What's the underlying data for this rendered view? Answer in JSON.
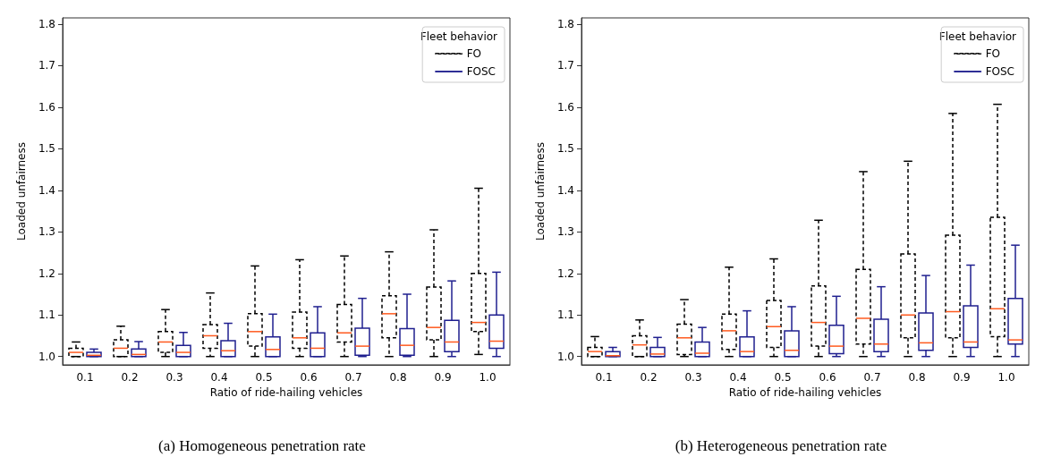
{
  "chart_data": [
    {
      "type": "box",
      "title": "(a) Homogeneous penetration rate",
      "xlabel": "Ratio of ride-hailing vehicles",
      "ylabel": "Loaded unfairness",
      "legend_title": "Fleet behavior",
      "legend": "top right",
      "grid": false,
      "categories": [
        "0.1",
        "0.2",
        "0.3",
        "0.4",
        "0.5",
        "0.6",
        "0.7",
        "0.8",
        "0.9",
        "1.0"
      ],
      "ylim": [
        0.98,
        1.815
      ],
      "yticks": [
        {
          "value": 1,
          "label": "1.0"
        },
        1.1,
        1.2,
        1.3,
        1.4,
        1.5,
        1.6,
        1.7,
        1.8
      ],
      "series": [
        {
          "name": "FO",
          "color": "#000000",
          "line_style": "dashed",
          "boxes": [
            {
              "low": 1.0,
              "q1": 1.0,
              "median": 1.01,
              "q3": 1.02,
              "high": 1.035
            },
            {
              "low": 1.0,
              "q1": 1.0,
              "median": 1.02,
              "q3": 1.04,
              "high": 1.073
            },
            {
              "low": 1.0,
              "q1": 1.01,
              "median": 1.035,
              "q3": 1.06,
              "high": 1.113
            },
            {
              "low": 1.0,
              "q1": 1.02,
              "median": 1.05,
              "q3": 1.077,
              "high": 1.153
            },
            {
              "low": 1.0,
              "q1": 1.025,
              "median": 1.06,
              "q3": 1.103,
              "high": 1.218
            },
            {
              "low": 1.0,
              "q1": 1.02,
              "median": 1.045,
              "q3": 1.107,
              "high": 1.233
            },
            {
              "low": 1.0,
              "q1": 1.035,
              "median": 1.057,
              "q3": 1.125,
              "high": 1.242
            },
            {
              "low": 1.0,
              "q1": 1.045,
              "median": 1.103,
              "q3": 1.146,
              "high": 1.252
            },
            {
              "low": 1.0,
              "q1": 1.04,
              "median": 1.07,
              "q3": 1.167,
              "high": 1.305
            },
            {
              "low": 1.005,
              "q1": 1.06,
              "median": 1.082,
              "q3": 1.2,
              "high": 1.405
            }
          ]
        },
        {
          "name": "FOSC",
          "color": "#1f1f8f",
          "line_style": "solid",
          "boxes": [
            {
              "low": 1.0,
              "q1": 1.0,
              "median": 1.003,
              "q3": 1.01,
              "high": 1.018
            },
            {
              "low": 1.0,
              "q1": 1.0,
              "median": 1.005,
              "q3": 1.018,
              "high": 1.036
            },
            {
              "low": 1.0,
              "q1": 1.0,
              "median": 1.01,
              "q3": 1.027,
              "high": 1.058
            },
            {
              "low": 1.0,
              "q1": 1.0,
              "median": 1.014,
              "q3": 1.038,
              "high": 1.08
            },
            {
              "low": 1.0,
              "q1": 1.0,
              "median": 1.017,
              "q3": 1.047,
              "high": 1.102
            },
            {
              "low": 1.0,
              "q1": 1.0,
              "median": 1.02,
              "q3": 1.057,
              "high": 1.12
            },
            {
              "low": 1.0,
              "q1": 1.003,
              "median": 1.025,
              "q3": 1.068,
              "high": 1.14
            },
            {
              "low": 1.0,
              "q1": 1.003,
              "median": 1.027,
              "q3": 1.067,
              "high": 1.15
            },
            {
              "low": 1.0,
              "q1": 1.012,
              "median": 1.035,
              "q3": 1.087,
              "high": 1.182
            },
            {
              "low": 1.0,
              "q1": 1.02,
              "median": 1.037,
              "q3": 1.1,
              "high": 1.203
            }
          ]
        }
      ]
    },
    {
      "type": "box",
      "title": "(b) Heterogeneous penetration rate",
      "xlabel": "Ratio of ride-hailing vehicles",
      "ylabel": "Loaded unfairness",
      "legend_title": "Fleet behavior",
      "legend": "top right",
      "grid": false,
      "categories": [
        "0.1",
        "0.2",
        "0.3",
        "0.4",
        "0.5",
        "0.6",
        "0.7",
        "0.8",
        "0.9",
        "1.0"
      ],
      "ylim": [
        0.98,
        1.815
      ],
      "yticks": [
        {
          "value": 1,
          "label": "1.0"
        },
        1.1,
        1.2,
        1.3,
        1.4,
        1.5,
        1.6,
        1.7,
        1.8
      ],
      "series": [
        {
          "name": "FO",
          "color": "#000000",
          "line_style": "dashed",
          "boxes": [
            {
              "low": 1.0,
              "q1": 1.0,
              "median": 1.012,
              "q3": 1.022,
              "high": 1.048
            },
            {
              "low": 1.0,
              "q1": 1.0,
              "median": 1.028,
              "q3": 1.05,
              "high": 1.088
            },
            {
              "low": 1.0,
              "q1": 1.005,
              "median": 1.045,
              "q3": 1.078,
              "high": 1.137
            },
            {
              "low": 1.0,
              "q1": 1.017,
              "median": 1.062,
              "q3": 1.102,
              "high": 1.215
            },
            {
              "low": 1.0,
              "q1": 1.022,
              "median": 1.072,
              "q3": 1.135,
              "high": 1.235
            },
            {
              "low": 1.0,
              "q1": 1.025,
              "median": 1.082,
              "q3": 1.17,
              "high": 1.328
            },
            {
              "low": 1.0,
              "q1": 1.03,
              "median": 1.092,
              "q3": 1.21,
              "high": 1.445
            },
            {
              "low": 1.0,
              "q1": 1.045,
              "median": 1.1,
              "q3": 1.247,
              "high": 1.47
            },
            {
              "low": 1.0,
              "q1": 1.045,
              "median": 1.108,
              "q3": 1.292,
              "high": 1.585
            },
            {
              "low": 1.0,
              "q1": 1.048,
              "median": 1.115,
              "q3": 1.335,
              "high": 1.607
            }
          ]
        },
        {
          "name": "FOSC",
          "color": "#1f1f8f",
          "line_style": "solid",
          "boxes": [
            {
              "low": 1.0,
              "q1": 1.0,
              "median": 1.002,
              "q3": 1.012,
              "high": 1.022
            },
            {
              "low": 1.0,
              "q1": 1.0,
              "median": 1.006,
              "q3": 1.022,
              "high": 1.046
            },
            {
              "low": 1.0,
              "q1": 1.0,
              "median": 1.008,
              "q3": 1.035,
              "high": 1.07
            },
            {
              "low": 1.0,
              "q1": 1.0,
              "median": 1.012,
              "q3": 1.047,
              "high": 1.11
            },
            {
              "low": 1.0,
              "q1": 1.0,
              "median": 1.015,
              "q3": 1.062,
              "high": 1.12
            },
            {
              "low": 1.0,
              "q1": 1.007,
              "median": 1.025,
              "q3": 1.075,
              "high": 1.145
            },
            {
              "low": 1.0,
              "q1": 1.012,
              "median": 1.03,
              "q3": 1.09,
              "high": 1.168
            },
            {
              "low": 1.0,
              "q1": 1.015,
              "median": 1.033,
              "q3": 1.105,
              "high": 1.195
            },
            {
              "low": 1.0,
              "q1": 1.022,
              "median": 1.035,
              "q3": 1.122,
              "high": 1.22
            },
            {
              "low": 1.0,
              "q1": 1.03,
              "median": 1.04,
              "q3": 1.14,
              "high": 1.268
            }
          ]
        }
      ]
    }
  ]
}
